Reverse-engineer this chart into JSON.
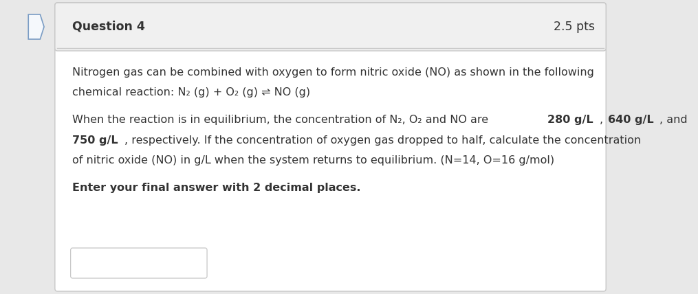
{
  "fig_width": 10.15,
  "fig_height": 4.28,
  "dpi": 100,
  "bg_color": "#e8e8e8",
  "outer_box_color": "#ffffff",
  "outer_box_edge_color": "#c8c8c8",
  "header_bg_color": "#f0f0f0",
  "header_text": "Question 4",
  "header_pts": "2.5 pts",
  "header_fontsize": 12.5,
  "body_fontsize": 11.5,
  "text_color": "#333333",
  "input_box_edge_color": "#c0c0c0",
  "line1": "Nitrogen gas can be combined with oxygen to form nitric oxide (NO) as shown in the following",
  "line2": "chemical reaction: N₂ (g) + O₂ (g) ⇌ NO (g)",
  "line3a": "When the reaction is in equilibrium, the concentration of N₂, O₂ and NO are ",
  "line3b": "280 g/L",
  "line3c": ", ",
  "line3d": "640 g/L",
  "line3e": ", and",
  "line4a": "750 g/L",
  "line4b": ", respectively. If the concentration of oxygen gas dropped to half, calculate the concentration",
  "line5": "of nitric oxide (NO) in g/L when the system returns to equilibrium. (N=14, O=16 g/mol)",
  "line6": "Enter your final answer with 2 decimal places."
}
